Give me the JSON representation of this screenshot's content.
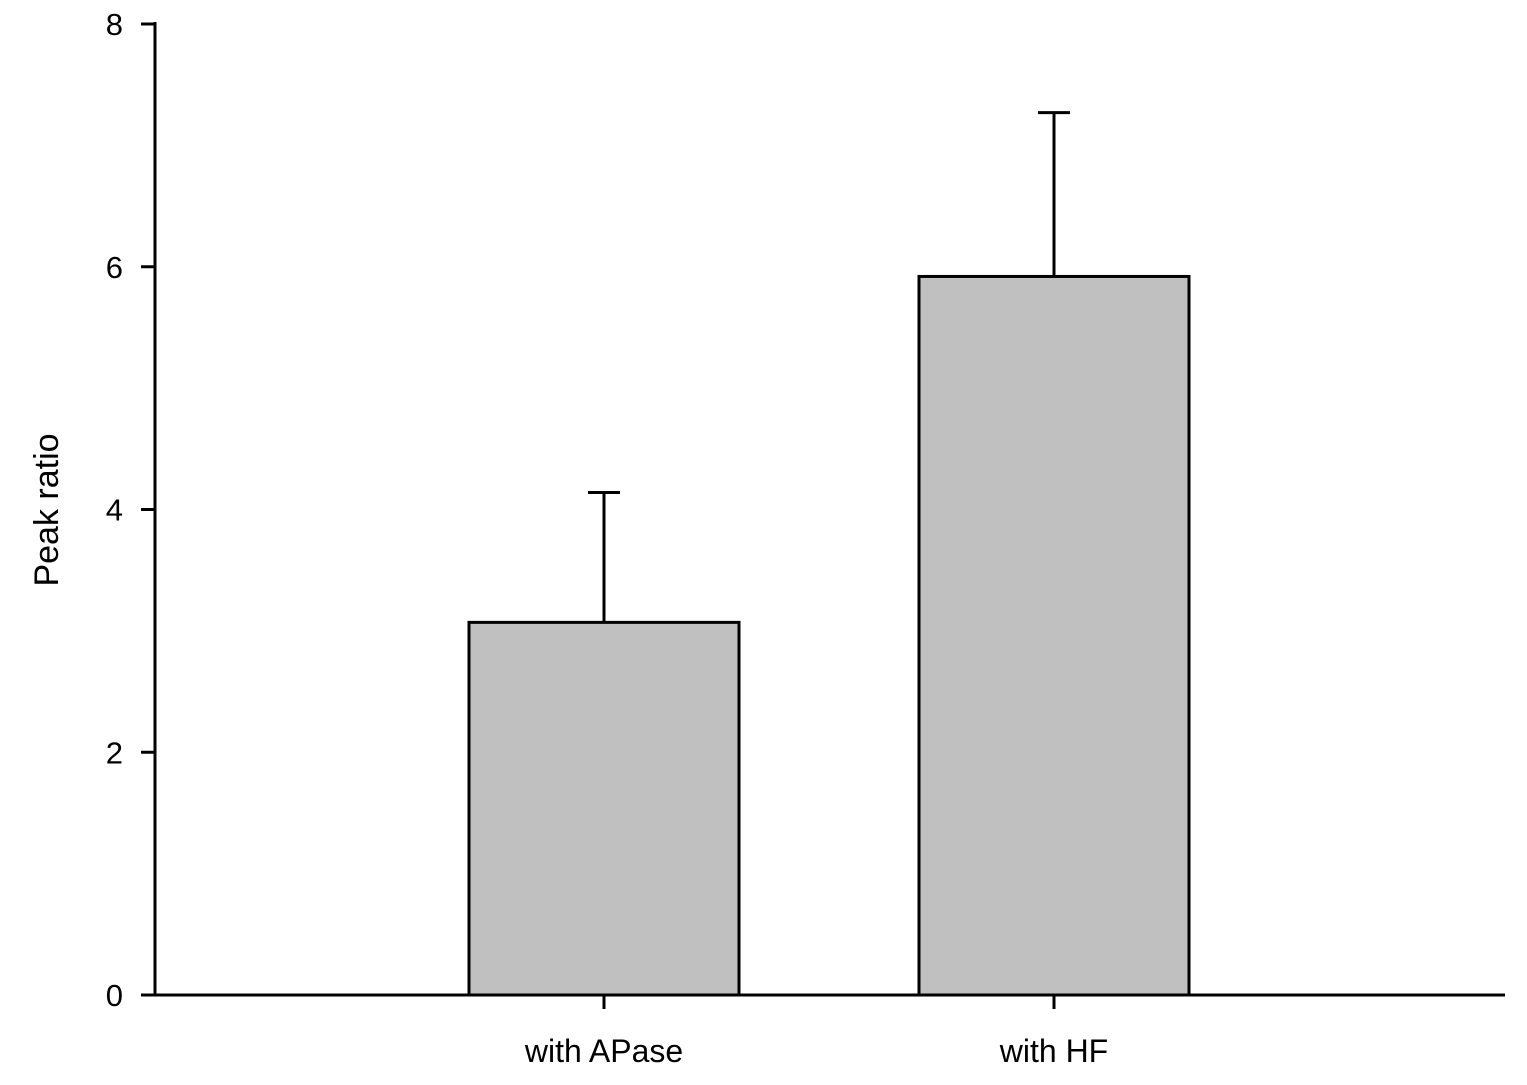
{
  "chart_data": {
    "type": "bar",
    "title": "",
    "xlabel": "",
    "ylabel": "Peak ratio",
    "ylim": [
      0,
      8
    ],
    "yticks": [
      0,
      2,
      4,
      6,
      8
    ],
    "ytick_labels": [
      "0",
      "2",
      "4",
      "6",
      "8"
    ],
    "categories": [
      "with APase",
      "with HF"
    ],
    "values": [
      3.07,
      5.92
    ],
    "error_upper": [
      1.07,
      1.35
    ],
    "grid": false,
    "legend": "none",
    "colors": {
      "bar_fill": "#c0c0c0",
      "bar_stroke": "#000000",
      "axis": "#000000"
    }
  }
}
